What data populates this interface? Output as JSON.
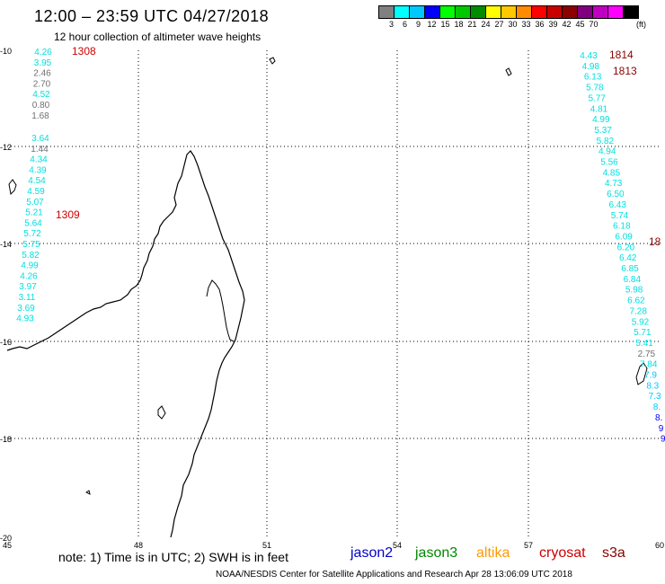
{
  "header": {
    "title": "12:00 – 23:59 UTC 04/27/2018",
    "subtitle": "12 hour collection of altimeter wave heights"
  },
  "scale": {
    "colors": [
      "#808080",
      "#00ffff",
      "#00c8ff",
      "#0000ff",
      "#00ff00",
      "#00c800",
      "#008c00",
      "#ffff00",
      "#ffc800",
      "#ff8c00",
      "#ff0000",
      "#c80000",
      "#8c0000",
      "#800080",
      "#c000c0",
      "#ff00ff",
      "#000000"
    ],
    "labels": [
      "3",
      "6",
      "9",
      "12",
      "15",
      "18",
      "21",
      "24",
      "27",
      "30",
      "33",
      "36",
      "39",
      "42",
      "45",
      "70"
    ],
    "unit": "(ft)"
  },
  "axes": {
    "lat_ticks": [
      "-10",
      "-12",
      "-14",
      "-16",
      "-18",
      "-20"
    ],
    "lon_ticks": [
      "45",
      "48",
      "51",
      "54",
      "57",
      "60"
    ]
  },
  "passes": {
    "left_a": {
      "label": "1308",
      "label_color": "#cc0000",
      "points": [
        {
          "v": "4.26",
          "c": "#00e0e0"
        },
        {
          "v": "3.95",
          "c": "#00e0e0"
        },
        {
          "v": "2.46",
          "c": "#707070"
        },
        {
          "v": "2.70",
          "c": "#707070"
        },
        {
          "v": "4.52",
          "c": "#00e0e0"
        },
        {
          "v": "0.80",
          "c": "#707070"
        },
        {
          "v": "1.68",
          "c": "#707070"
        }
      ]
    },
    "left_b": {
      "label": "1309",
      "label_color": "#cc0000",
      "points": [
        {
          "v": "3.64",
          "c": "#00e0e0"
        },
        {
          "v": "1.44",
          "c": "#707070"
        },
        {
          "v": "4.34",
          "c": "#00e0e0"
        },
        {
          "v": "4.39",
          "c": "#00e0e0"
        },
        {
          "v": "4.54",
          "c": "#00e0e0"
        },
        {
          "v": "4.59",
          "c": "#00e0e0"
        },
        {
          "v": "5.07",
          "c": "#00e0e0"
        },
        {
          "v": "5.21",
          "c": "#00e0e0"
        },
        {
          "v": "5.64",
          "c": "#00e0e0"
        },
        {
          "v": "5.72",
          "c": "#00e0e0"
        },
        {
          "v": "5.75",
          "c": "#00e0e0"
        },
        {
          "v": "5.82",
          "c": "#00e0e0"
        },
        {
          "v": "4.99",
          "c": "#00e0e0"
        },
        {
          "v": "4.26",
          "c": "#00e0e0"
        },
        {
          "v": "3.97",
          "c": "#00e0e0"
        },
        {
          "v": "3.11",
          "c": "#00e0e0"
        },
        {
          "v": "3.69",
          "c": "#00e0e0"
        },
        {
          "v": "4.93",
          "c": "#00e0e0"
        }
      ]
    },
    "right": {
      "labels": [
        {
          "t": "1814",
          "c": "#8b0000"
        },
        {
          "t": "1813",
          "c": "#8b0000"
        },
        {
          "t": "18",
          "c": "#8b0000"
        }
      ],
      "points": [
        {
          "v": "4.43",
          "c": "#00e0e0"
        },
        {
          "v": "4.98",
          "c": "#00e0e0"
        },
        {
          "v": "6.13",
          "c": "#00e0e0"
        },
        {
          "v": "5.78",
          "c": "#00e0e0"
        },
        {
          "v": "5.77",
          "c": "#00e0e0"
        },
        {
          "v": "4.81",
          "c": "#00e0e0"
        },
        {
          "v": "4.99",
          "c": "#00e0e0"
        },
        {
          "v": "5.37",
          "c": "#00e0e0"
        },
        {
          "v": "5.82",
          "c": "#00e0e0"
        },
        {
          "v": "4.94",
          "c": "#00e0e0"
        },
        {
          "v": "5.56",
          "c": "#00e0e0"
        },
        {
          "v": "4.85",
          "c": "#00e0e0"
        },
        {
          "v": "4.73",
          "c": "#00e0e0"
        },
        {
          "v": "6.50",
          "c": "#00e0e0"
        },
        {
          "v": "6.43",
          "c": "#00e0e0"
        },
        {
          "v": "5.74",
          "c": "#00e0e0"
        },
        {
          "v": "6.18",
          "c": "#00e0e0"
        },
        {
          "v": "6.09",
          "c": "#00e0e0"
        },
        {
          "v": "6.20",
          "c": "#00e0e0"
        },
        {
          "v": "6.42",
          "c": "#00e0e0"
        },
        {
          "v": "6.85",
          "c": "#00e0e0"
        },
        {
          "v": "6.84",
          "c": "#00e0e0"
        },
        {
          "v": "5.98",
          "c": "#00e0e0"
        },
        {
          "v": "6.62",
          "c": "#00e0e0"
        },
        {
          "v": "7.28",
          "c": "#00e0e0"
        },
        {
          "v": "5.92",
          "c": "#00e0e0"
        },
        {
          "v": "5.71",
          "c": "#00e0e0"
        },
        {
          "v": "5.41",
          "c": "#00e0e0"
        },
        {
          "v": "2.75",
          "c": "#707070"
        },
        {
          "v": "7.84",
          "c": "#00e0e0"
        },
        {
          "v": "7.9",
          "c": "#00c8ff"
        },
        {
          "v": "8.3",
          "c": "#00c8ff"
        },
        {
          "v": "7.3",
          "c": "#00c8ff"
        },
        {
          "v": "8.",
          "c": "#00c8ff"
        },
        {
          "v": "8.",
          "c": "#0000ff"
        },
        {
          "v": "9",
          "c": "#0000ff"
        },
        {
          "v": "9",
          "c": "#0000ff"
        }
      ]
    }
  },
  "footer": {
    "note": "note: 1) Time is in UTC; 2) SWH is in feet",
    "legend": [
      {
        "t": "jason2",
        "c": "#0000cc"
      },
      {
        "t": "jason3",
        "c": "#008800"
      },
      {
        "t": "altika",
        "c": "#ff9900"
      },
      {
        "t": "cryosat",
        "c": "#cc0000"
      },
      {
        "t": "s3a",
        "c": "#8b0000"
      }
    ],
    "credit": "NOAA/NESDIS Center for Satellite Applications and Research   Apr 28 13:06:09 UTC 2018"
  }
}
